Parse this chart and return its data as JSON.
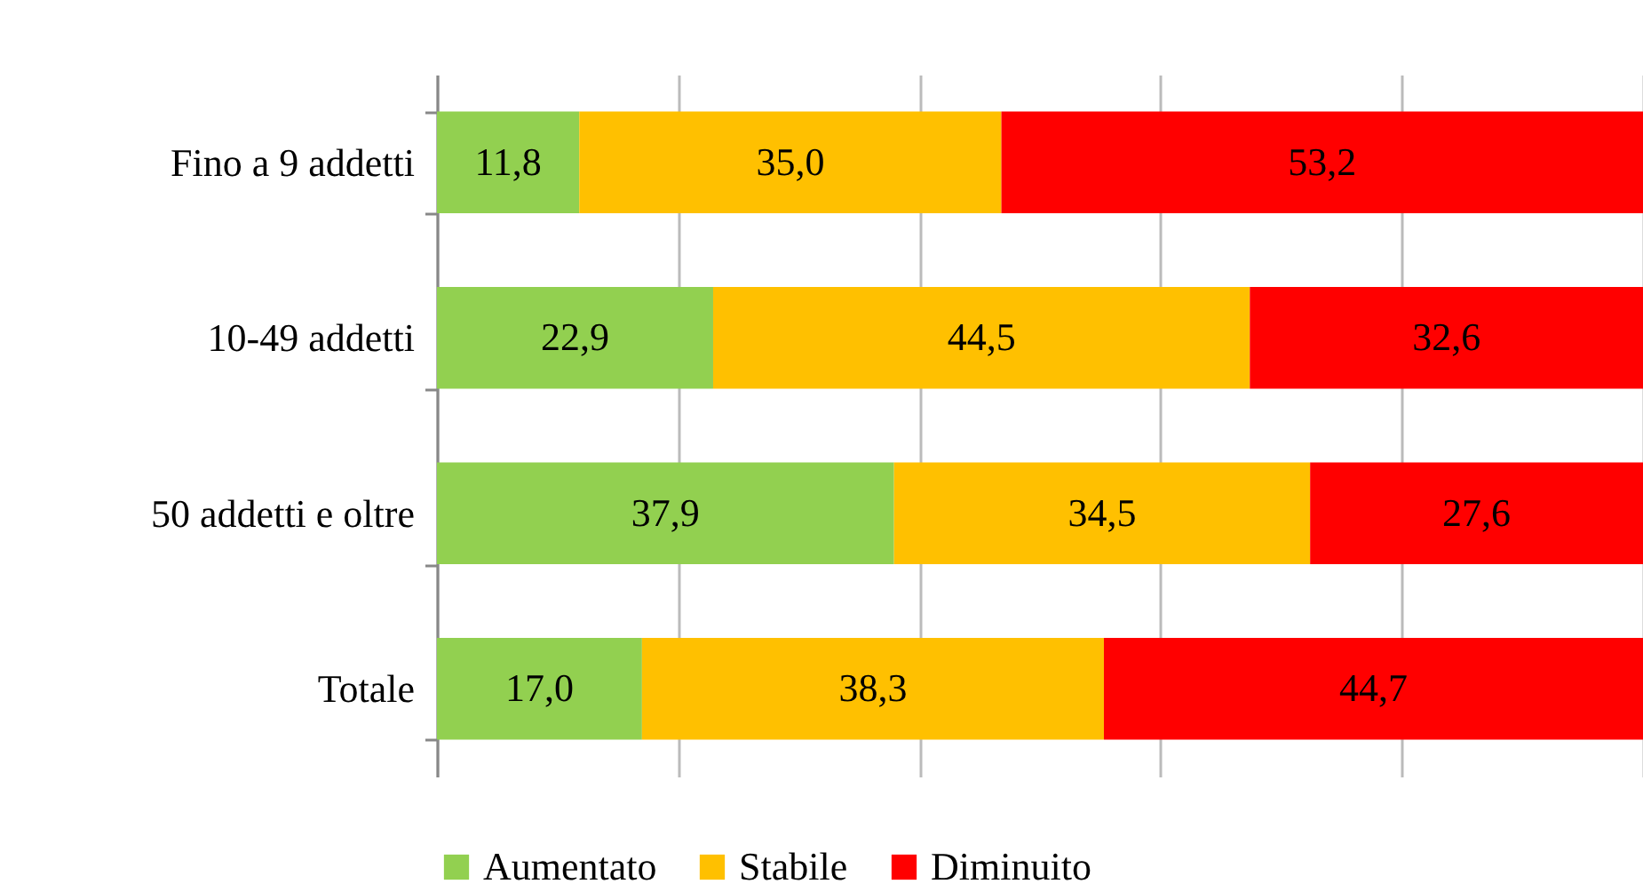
{
  "chart_data": {
    "type": "bar",
    "orientation": "horizontal",
    "stacked": true,
    "categories": [
      "Fino a 9 addetti",
      "10-49 addetti",
      "50 addetti e oltre",
      "Totale"
    ],
    "series": [
      {
        "name": "Aumentato",
        "color": "#92d050",
        "values": [
          11.8,
          22.9,
          37.9,
          17.0
        ],
        "value_labels": [
          "11,8",
          "22,9",
          "37,9",
          "17,0"
        ]
      },
      {
        "name": "Stabile",
        "color": "#ffc000",
        "values": [
          35.0,
          44.5,
          34.5,
          38.3
        ],
        "value_labels": [
          "35,0",
          "44,5",
          "34,5",
          "38,3"
        ]
      },
      {
        "name": "Diminuito",
        "color": "#ff0000",
        "values": [
          53.2,
          32.6,
          27.6,
          44.7
        ],
        "value_labels": [
          "53,2",
          "32,6",
          "27,6",
          "44,7"
        ]
      }
    ],
    "grid": "x",
    "tick_labels": "y",
    "legend": "bottom"
  }
}
